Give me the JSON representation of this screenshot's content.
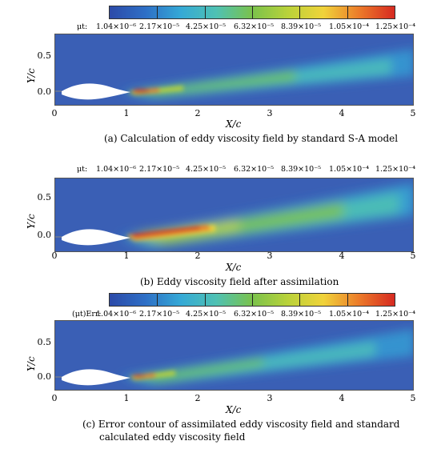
{
  "colors": {
    "cb_stops": [
      "#2c4aa8",
      "#2e6fc6",
      "#35a9d6",
      "#4fc1b3",
      "#7ac24c",
      "#b9d23a",
      "#f0d33a",
      "#ec7b2a",
      "#d62a21"
    ],
    "background_field": "#3a5fb5"
  },
  "panels": [
    {
      "legend_symbol": "μt:",
      "legend_ticks": [
        "1.04×10⁻⁶",
        "2.17×10⁻⁵",
        "4.25×10⁻⁵",
        "6.32×10⁻⁵",
        "8.39×10⁻⁵",
        "1.05×10⁻⁴",
        "1.25×10⁻⁴"
      ],
      "y_label": "Y/c",
      "y_ticks": [
        "0.5",
        "0.0"
      ],
      "x_label": "X/c",
      "x_ticks": [
        "0",
        "1",
        "2",
        "3",
        "4",
        "5"
      ],
      "caption": "(a) Calculation of eddy viscosity field by standard S-A model"
    },
    {
      "legend_symbol": "μt:",
      "legend_ticks": [
        "1.04×10⁻⁶",
        "2.17×10⁻⁵",
        "4.25×10⁻⁵",
        "6.32×10⁻⁵",
        "8.39×10⁻⁵",
        "1.05×10⁻⁴",
        "1.25×10⁻⁴"
      ],
      "y_label": "Y/c",
      "y_ticks": [
        "0.5",
        "0.0"
      ],
      "x_label": "X/c",
      "x_ticks": [
        "0",
        "1",
        "2",
        "3",
        "4",
        "5"
      ],
      "caption": "(b) Eddy viscosity field after assimilation"
    },
    {
      "legend_symbol": "(μt)Err:",
      "legend_ticks": [
        "1.04×10⁻⁶",
        "2.17×10⁻⁵",
        "4.25×10⁻⁵",
        "6.32×10⁻⁵",
        "8.39×10⁻⁵",
        "1.05×10⁻⁴",
        "1.25×10⁻⁴"
      ],
      "y_label": "Y/c",
      "y_ticks": [
        "0.5",
        "0.0"
      ],
      "x_label": "X/c",
      "x_ticks": [
        "0",
        "1",
        "2",
        "3",
        "4",
        "5"
      ],
      "caption_line1": "(c) Error contour of assimilated eddy viscosity field and standard",
      "caption_line2": "calculated eddy viscosity field"
    }
  ]
}
